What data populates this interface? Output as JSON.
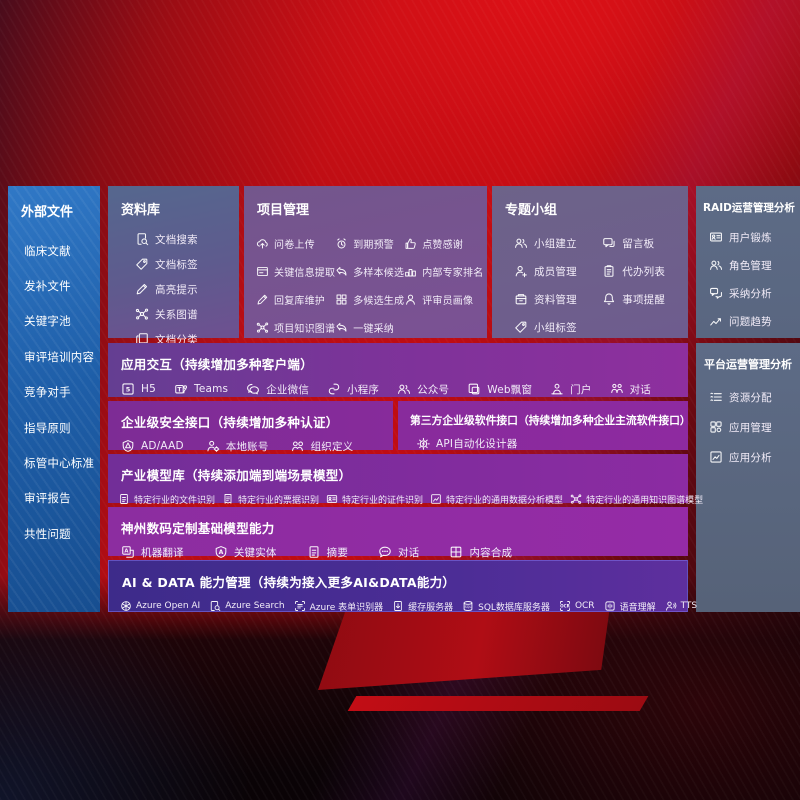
{
  "left_sidebar": {
    "title": "外部文件",
    "items": [
      "临床文献",
      "发补文件",
      "关键字池",
      "审评培训内容",
      "竞争对手",
      "指导原则",
      "标管中心标准",
      "审评报告",
      "共性问题"
    ]
  },
  "panels": {
    "kb": {
      "title": "资料库",
      "items": [
        {
          "icon": "doc-search",
          "label": "文档搜索"
        },
        {
          "icon": "tag",
          "label": "文档标签"
        },
        {
          "icon": "pen",
          "label": "高亮提示"
        },
        {
          "icon": "graph",
          "label": "关系图谱"
        },
        {
          "icon": "copy",
          "label": "文档分类"
        }
      ]
    },
    "project": {
      "title": "项目管理",
      "items": [
        {
          "icon": "cloud-upload",
          "label": "问卷上传"
        },
        {
          "icon": "alarm",
          "label": "到期预警"
        },
        {
          "icon": "thumbs-up",
          "label": "点赞感谢"
        },
        {
          "icon": "frame",
          "label": "关键信息提取"
        },
        {
          "icon": "reply",
          "label": "多样本候选"
        },
        {
          "icon": "ranking",
          "label": "内部专家排名"
        },
        {
          "icon": "pen",
          "label": "回复库维护"
        },
        {
          "icon": "grid",
          "label": "多候选生成"
        },
        {
          "icon": "person",
          "label": "评审员画像"
        },
        {
          "icon": "graph",
          "label": "项目知识图谱"
        },
        {
          "icon": "reply",
          "label": "一键采纳"
        }
      ]
    },
    "topic": {
      "title": "专题小组",
      "items": [
        {
          "icon": "people",
          "label": "小组建立"
        },
        {
          "icon": "bbs",
          "label": "留言板"
        },
        {
          "icon": "person-add",
          "label": "成员管理"
        },
        {
          "icon": "clipboard",
          "label": "代办列表"
        },
        {
          "icon": "archive",
          "label": "资料管理"
        },
        {
          "icon": "bell",
          "label": "事项提醒"
        },
        {
          "icon": "tag",
          "label": "小组标签"
        }
      ]
    },
    "raid": {
      "title": "RAID运营管理分析",
      "items": [
        {
          "icon": "id-card",
          "label": "用户锻炼"
        },
        {
          "icon": "people",
          "label": "角色管理"
        },
        {
          "icon": "qa",
          "label": "采纳分析"
        },
        {
          "icon": "trend",
          "label": "问题趋势"
        }
      ]
    },
    "platform": {
      "title": "平台运营管理分析",
      "items": [
        {
          "icon": "list",
          "label": "资源分配"
        },
        {
          "icon": "apps",
          "label": "应用管理"
        },
        {
          "icon": "chart-box",
          "label": "应用分析"
        }
      ]
    }
  },
  "bands": {
    "interaction": {
      "title": "应用交互（持续增加多种客户端）",
      "items": [
        {
          "icon": "h5",
          "label": "H5"
        },
        {
          "icon": "teams",
          "label": "Teams"
        },
        {
          "icon": "wechat",
          "label": "企业微信"
        },
        {
          "icon": "miniapp",
          "label": "小程序"
        },
        {
          "icon": "people",
          "label": "公众号"
        },
        {
          "icon": "web-window",
          "label": "Web飘窗"
        },
        {
          "icon": "portal",
          "label": "门户"
        },
        {
          "icon": "chat-pair",
          "label": "对话"
        }
      ]
    },
    "security": {
      "title": "企业级安全接口（持续增加多种认证）",
      "items": [
        {
          "icon": "shield",
          "label": "AD/AAD"
        },
        {
          "icon": "person-gear",
          "label": "本地账号"
        },
        {
          "icon": "org",
          "label": "组织定义"
        }
      ]
    },
    "third_party": {
      "title": "第三方企业级软件接口（持续增加多种企业主流软件接口）",
      "items": [
        {
          "icon": "api-gear",
          "label": "API自动化设计器"
        }
      ]
    },
    "industry": {
      "title": "产业模型库（持续添加端到端场景模型）",
      "items": [
        {
          "icon": "doc",
          "label": "特定行业的文件识别"
        },
        {
          "icon": "receipt",
          "label": "特定行业的票据识别"
        },
        {
          "icon": "id-card",
          "label": "特定行业的证件识别"
        },
        {
          "icon": "chart-box",
          "label": "特定行业的通用数据分析模型"
        },
        {
          "icon": "graph",
          "label": "特定行业的通用知识图谱模型"
        }
      ]
    },
    "digital_china": {
      "title": "神州数码定制基础模型能力",
      "items": [
        {
          "icon": "translate",
          "label": "机器翻译"
        },
        {
          "icon": "shield-a",
          "label": "关键实体"
        },
        {
          "icon": "doc",
          "label": "摘要"
        },
        {
          "icon": "dialog",
          "label": "对话"
        },
        {
          "icon": "compose",
          "label": "内容合成"
        }
      ]
    },
    "ai_data": {
      "title": "AI & DATA 能力管理（持续为接入更多AI&DATA能力）",
      "items": [
        {
          "icon": "openai",
          "label": "Azure Open AI"
        },
        {
          "icon": "azure-search",
          "label": "Azure Search"
        },
        {
          "icon": "form-recognizer",
          "label": "Azure 表单识别器"
        },
        {
          "icon": "cache-server",
          "label": "缓存服务器"
        },
        {
          "icon": "sql-db",
          "label": "SQL数据库服务器"
        },
        {
          "icon": "ocr",
          "label": "OCR"
        },
        {
          "icon": "speech",
          "label": "语音理解"
        },
        {
          "icon": "tts",
          "label": "TTS"
        }
      ]
    }
  },
  "colors": {
    "background_red": "#b90d14",
    "sidebar_blue": "#1e5ea8",
    "panel_slate": "#55678e",
    "panel_mauve": "#73568c",
    "panel_gray_purple": "#6d6389",
    "panel_steel": "#5d6b86",
    "band_purple": "#8e2f9e",
    "band_indigo": "#3d2b8a",
    "text": "#ffffff"
  }
}
